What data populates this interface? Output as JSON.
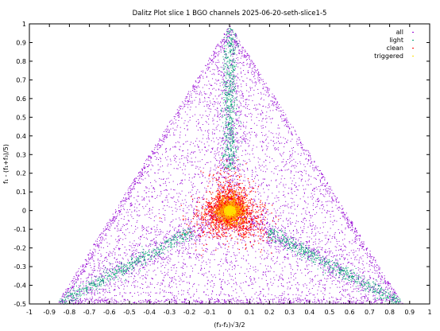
{
  "chart_data": {
    "type": "scatter",
    "title": "Dalitz Plot slice 1 BGO channels 2025-06-20-seth-slice1-5",
    "xlabel": "(f₃-f₂)√3/2",
    "ylabel": "f₁ - (f₁+f₃)/5)",
    "xlim": [
      -1,
      1
    ],
    "ylim": [
      -0.5,
      1
    ],
    "x_ticks": [
      "-1",
      "-0.9",
      "-0.8",
      "-0.7",
      "-0.6",
      "-0.5",
      "-0.4",
      "-0.3",
      "-0.2",
      "-0.1",
      "0",
      "0.1",
      "0.2",
      "0.3",
      "0.4",
      "0.5",
      "0.6",
      "0.7",
      "0.8",
      "0.9",
      "1"
    ],
    "y_ticks": [
      "-0.5",
      "-0.4",
      "-0.3",
      "-0.2",
      "-0.1",
      "0",
      "0.1",
      "0.2",
      "0.3",
      "0.4",
      "0.5",
      "0.6",
      "0.7",
      "0.8",
      "0.9",
      "1"
    ],
    "grid": false,
    "legend_position": "top-right",
    "triangle_vertices": [
      [
        0,
        1
      ],
      [
        -0.866,
        -0.5
      ],
      [
        0.866,
        -0.5
      ]
    ],
    "series": [
      {
        "name": "all",
        "color": "#9400d3",
        "region": "full-triangle"
      },
      {
        "name": "light",
        "color": "#009e73",
        "region": "three-bands-from-center-to-vertices"
      },
      {
        "name": "clean",
        "color": "#ff0000",
        "region": "central-cluster-radius-0.2"
      },
      {
        "name": "triggered",
        "color": "#ffe000",
        "region": "central-core-radius-0.1"
      }
    ]
  }
}
